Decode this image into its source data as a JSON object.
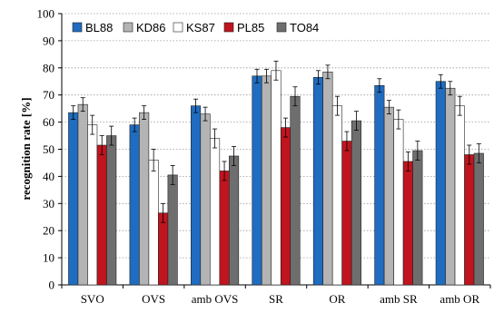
{
  "chart_data": {
    "type": "bar",
    "title": "",
    "xlabel": "",
    "ylabel": "recognition rate [%]",
    "ylim": [
      0,
      100
    ],
    "yticks": [
      0,
      10,
      20,
      30,
      40,
      50,
      60,
      70,
      80,
      90,
      100
    ],
    "grid": "horizontal dotted",
    "legend_position": "top-left",
    "categories": [
      "SVO",
      "OVS",
      "amb OVS",
      "SR",
      "OR",
      "amb SR",
      "amb OR"
    ],
    "series": [
      {
        "name": "BL88",
        "color": "#1f6cc0",
        "values": [
          63.5,
          59,
          66,
          77,
          76.5,
          73.5,
          75
        ],
        "errors": [
          2.5,
          2.5,
          2.5,
          2.5,
          2.5,
          2.5,
          2.5
        ]
      },
      {
        "name": "KD86",
        "color": "#b4b4b4",
        "values": [
          66.5,
          63.5,
          63,
          77,
          78.5,
          65.5,
          72.5
        ],
        "errors": [
          2.5,
          2.5,
          2.5,
          2.5,
          2.5,
          2.5,
          2.5
        ]
      },
      {
        "name": "KS87",
        "color": "#ffffff",
        "values": [
          59,
          46,
          54,
          79,
          66,
          61,
          66
        ],
        "errors": [
          3.5,
          4,
          3.5,
          3.5,
          3.5,
          3.5,
          3.5
        ]
      },
      {
        "name": "PL85",
        "color": "#c0141e",
        "values": [
          51.5,
          26.5,
          42,
          58,
          53,
          45.5,
          48
        ],
        "errors": [
          3.5,
          3.5,
          3.5,
          3.5,
          3.5,
          3.5,
          3.5
        ]
      },
      {
        "name": "TO84",
        "color": "#6e6e6e",
        "values": [
          55,
          40.5,
          47.5,
          69.5,
          60.5,
          49.5,
          48.5
        ],
        "errors": [
          3.5,
          3.5,
          3.5,
          3.5,
          3.5,
          3.5,
          3.5
        ]
      }
    ]
  }
}
